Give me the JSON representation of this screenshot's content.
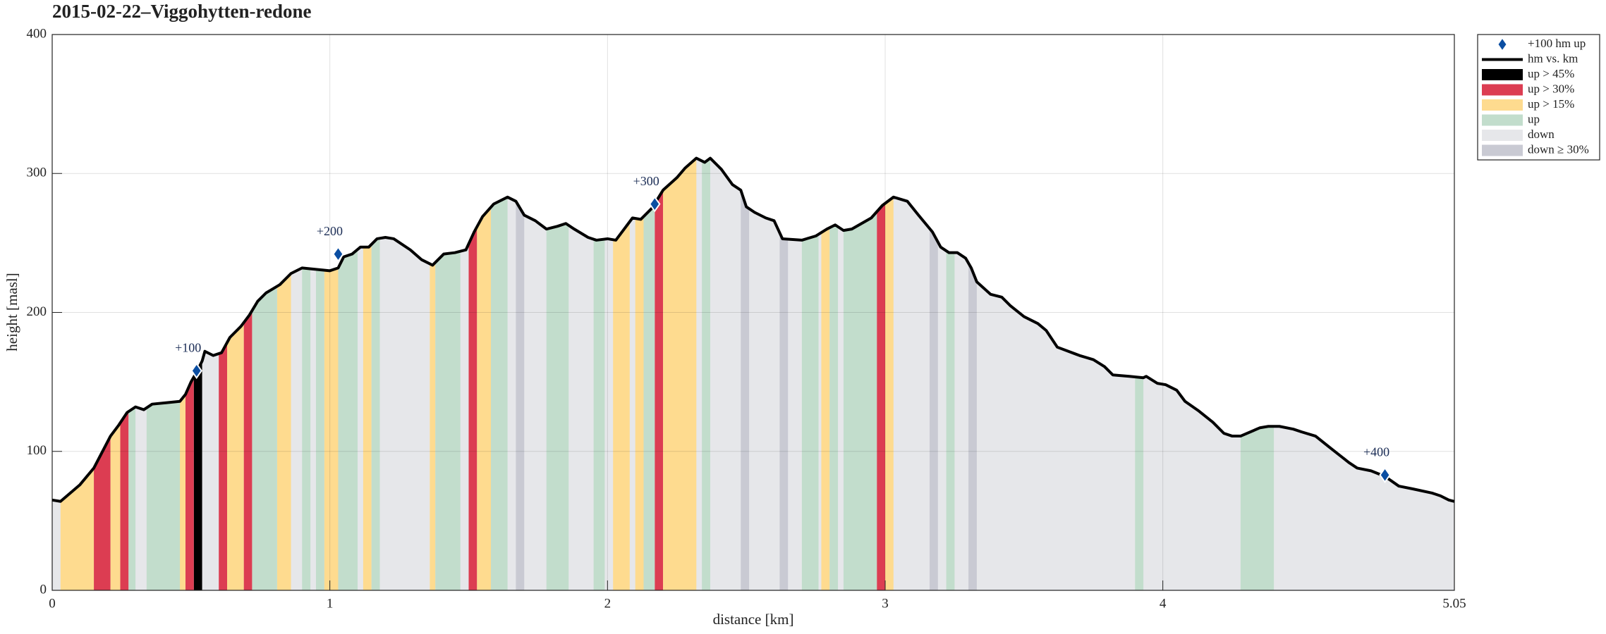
{
  "chart_data": {
    "type": "elevation-profile",
    "title": "2015-02-22–Viggohytten-redone",
    "xlabel": "distance [km]",
    "ylabel": "height [masl]",
    "xlim": [
      0,
      5.05
    ],
    "xticks": [
      0,
      1,
      2,
      3,
      4,
      5.05
    ],
    "ylim": [
      0,
      400
    ],
    "yticks": [
      0,
      100,
      200,
      300,
      400
    ],
    "grid": true,
    "legend": "outside-upper-right",
    "markers": {
      "name": "+100 hm up",
      "color": "#0b4ea2",
      "x": [
        0.52,
        1.03,
        2.17,
        4.8
      ],
      "values": [
        158,
        242,
        278,
        83
      ],
      "labels": [
        "+100",
        "+200",
        "+300",
        "+400"
      ]
    },
    "line": {
      "name": "hm vs. km",
      "color": "#000000",
      "x": [
        0,
        0.03,
        0.1,
        0.15,
        0.21,
        0.24,
        0.27,
        0.3,
        0.33,
        0.36,
        0.41,
        0.46,
        0.48,
        0.5,
        0.52,
        0.54,
        0.55,
        0.58,
        0.61,
        0.64,
        0.68,
        0.71,
        0.74,
        0.77,
        0.82,
        0.86,
        0.9,
        0.95,
        1.0,
        1.03,
        1.05,
        1.08,
        1.11,
        1.14,
        1.17,
        1.2,
        1.23,
        1.29,
        1.33,
        1.37,
        1.41,
        1.45,
        1.49,
        1.52,
        1.55,
        1.59,
        1.64,
        1.67,
        1.7,
        1.74,
        1.78,
        1.82,
        1.85,
        1.88,
        1.93,
        1.96,
        2.0,
        2.03,
        2.06,
        2.09,
        2.12,
        2.16,
        2.2,
        2.25,
        2.28,
        2.32,
        2.35,
        2.37,
        2.41,
        2.45,
        2.48,
        2.5,
        2.53,
        2.57,
        2.6,
        2.63,
        2.7,
        2.75,
        2.79,
        2.82,
        2.85,
        2.88,
        2.95,
        2.99,
        3.03,
        3.08,
        3.12,
        3.17,
        3.2,
        3.23,
        3.26,
        3.29,
        3.31,
        3.33,
        3.38,
        3.42,
        3.45,
        3.5,
        3.55,
        3.58,
        3.62,
        3.7,
        3.75,
        3.79,
        3.82,
        3.88,
        3.93,
        3.94,
        3.98,
        4.01,
        4.05,
        4.08,
        4.13,
        4.18,
        4.22,
        4.25,
        4.28,
        4.35,
        4.38,
        4.42,
        4.47,
        4.5,
        4.55,
        4.6,
        4.67,
        4.7,
        4.75,
        4.8,
        4.85,
        4.9,
        4.97,
        5.0,
        5.03,
        5.05
      ],
      "values": [
        65,
        64,
        76,
        88,
        111,
        119,
        128,
        132,
        130,
        134,
        135,
        136,
        141,
        150,
        157,
        165,
        172,
        169,
        171,
        182,
        190,
        198,
        208,
        214,
        220,
        228,
        232,
        231,
        230,
        232,
        240,
        242,
        247,
        247,
        253,
        254,
        253,
        245,
        238,
        234,
        242,
        243,
        245,
        258,
        269,
        278,
        283,
        280,
        270,
        266,
        260,
        262,
        264,
        260,
        254,
        252,
        253,
        252,
        260,
        268,
        267,
        275,
        288,
        297,
        304,
        311,
        308,
        311,
        303,
        292,
        288,
        276,
        272,
        268,
        266,
        253,
        252,
        255,
        260,
        263,
        259,
        260,
        268,
        277,
        283,
        280,
        270,
        258,
        247,
        243,
        243,
        239,
        232,
        222,
        213,
        211,
        205,
        197,
        192,
        187,
        175,
        169,
        166,
        161,
        155,
        154,
        153,
        154,
        149,
        148,
        144,
        136,
        129,
        121,
        113,
        111,
        111,
        117,
        118,
        118,
        116,
        114,
        111,
        103,
        92,
        88,
        86,
        82,
        75,
        73,
        70,
        68,
        65,
        64
      ]
    },
    "series": [
      {
        "name": "up > 45%",
        "color": "#000000",
        "intervals": [
          [
            0.51,
            0.54
          ]
        ]
      },
      {
        "name": "up > 30%",
        "color": "#dc3d52",
        "intervals": [
          [
            0.15,
            0.21
          ],
          [
            0.245,
            0.275
          ],
          [
            0.48,
            0.51
          ],
          [
            0.6,
            0.63
          ],
          [
            0.69,
            0.72
          ],
          [
            1.5,
            1.53
          ],
          [
            2.17,
            2.2
          ],
          [
            2.97,
            3.0
          ]
        ]
      },
      {
        "name": "up > 15%",
        "color": "#fedb8f",
        "intervals": [
          [
            0.03,
            0.15
          ],
          [
            0.21,
            0.245
          ],
          [
            0.455,
            0.48
          ],
          [
            0.63,
            0.69
          ],
          [
            0.81,
            0.86
          ],
          [
            0.98,
            1.03
          ],
          [
            1.12,
            1.15
          ],
          [
            1.36,
            1.38
          ],
          [
            1.53,
            1.58
          ],
          [
            2.02,
            2.08
          ],
          [
            2.1,
            2.13
          ],
          [
            2.2,
            2.32
          ],
          [
            2.77,
            2.8
          ],
          [
            3.0,
            3.03
          ]
        ]
      },
      {
        "name": "up",
        "color": "#c2ddcc",
        "intervals": [
          [
            0.275,
            0.3
          ],
          [
            0.34,
            0.46
          ],
          [
            0.72,
            0.81
          ],
          [
            0.9,
            0.93
          ],
          [
            0.95,
            0.98
          ],
          [
            1.03,
            1.1
          ],
          [
            1.15,
            1.18
          ],
          [
            1.38,
            1.47
          ],
          [
            1.58,
            1.64
          ],
          [
            1.78,
            1.86
          ],
          [
            1.95,
            1.99
          ],
          [
            2.13,
            2.17
          ],
          [
            2.34,
            2.37
          ],
          [
            2.7,
            2.76
          ],
          [
            2.8,
            2.83
          ],
          [
            2.85,
            2.97
          ],
          [
            3.22,
            3.25
          ],
          [
            3.9,
            3.93
          ],
          [
            4.28,
            4.4
          ]
        ]
      },
      {
        "name": "down",
        "color": "#e6e7ea",
        "intervals": []
      },
      {
        "name": "down ≥ 30%",
        "color": "#c9cad3",
        "intervals": [
          [
            1.67,
            1.7
          ],
          [
            2.48,
            2.51
          ],
          [
            2.62,
            2.65
          ],
          [
            3.16,
            3.19
          ],
          [
            3.3,
            3.33
          ]
        ]
      }
    ]
  }
}
